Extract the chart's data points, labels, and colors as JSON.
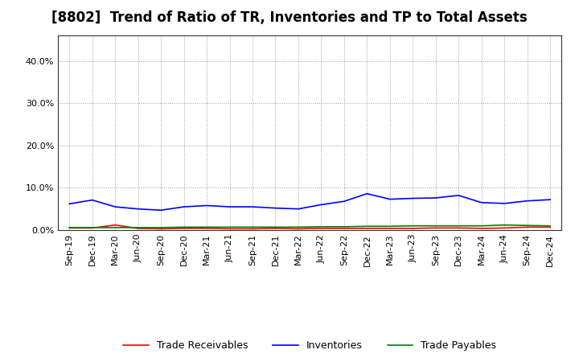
{
  "title": "[8802]  Trend of Ratio of TR, Inventories and TP to Total Assets",
  "x_labels": [
    "Sep-19",
    "Dec-19",
    "Mar-20",
    "Jun-20",
    "Sep-20",
    "Dec-20",
    "Mar-21",
    "Jun-21",
    "Sep-21",
    "Dec-21",
    "Mar-22",
    "Jun-22",
    "Sep-22",
    "Dec-22",
    "Mar-23",
    "Jun-23",
    "Sep-23",
    "Dec-23",
    "Mar-24",
    "Jun-24",
    "Sep-24",
    "Dec-24"
  ],
  "trade_receivables": [
    0.005,
    0.005,
    0.012,
    0.004,
    0.003,
    0.004,
    0.004,
    0.003,
    0.003,
    0.004,
    0.003,
    0.004,
    0.004,
    0.004,
    0.004,
    0.004,
    0.005,
    0.005,
    0.004,
    0.005,
    0.007,
    0.007
  ],
  "inventories": [
    0.062,
    0.071,
    0.055,
    0.05,
    0.047,
    0.055,
    0.058,
    0.055,
    0.055,
    0.052,
    0.05,
    0.06,
    0.068,
    0.086,
    0.073,
    0.075,
    0.076,
    0.082,
    0.065,
    0.063,
    0.069,
    0.072
  ],
  "trade_payables": [
    0.006,
    0.006,
    0.006,
    0.006,
    0.006,
    0.007,
    0.007,
    0.007,
    0.007,
    0.007,
    0.007,
    0.008,
    0.008,
    0.009,
    0.009,
    0.01,
    0.01,
    0.01,
    0.01,
    0.012,
    0.011,
    0.01
  ],
  "tr_color": "#ff0000",
  "inv_color": "#0000ff",
  "tp_color": "#008000",
  "ylim": [
    0.0,
    0.46
  ],
  "yticks": [
    0.0,
    0.1,
    0.2,
    0.3,
    0.4
  ],
  "background_color": "#ffffff",
  "plot_bg_color": "#ffffff",
  "grid_color": "#999999",
  "title_fontsize": 12,
  "tick_fontsize": 8,
  "legend_labels": [
    "Trade Receivables",
    "Inventories",
    "Trade Payables"
  ]
}
